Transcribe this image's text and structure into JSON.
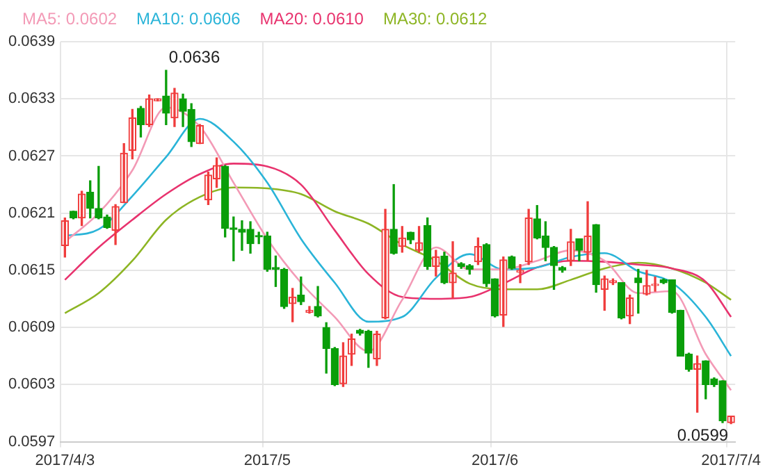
{
  "chart_data": {
    "type": "candlestick",
    "categories": [
      "2017/4/3",
      null,
      null,
      null,
      null,
      null,
      null,
      null,
      null,
      null,
      null,
      null,
      null,
      null,
      null,
      null,
      null,
      null,
      null,
      null,
      null,
      null,
      null,
      null,
      "2017/5",
      null,
      null,
      null,
      null,
      null,
      null,
      null,
      null,
      null,
      null,
      null,
      null,
      null,
      null,
      null,
      null,
      null,
      null,
      null,
      null,
      null,
      null,
      null,
      null,
      null,
      null,
      "2017/6",
      null,
      null,
      null,
      null,
      null,
      null,
      null,
      null,
      null,
      null,
      null,
      null,
      null,
      null,
      null,
      null,
      null,
      null,
      null,
      null,
      null,
      null,
      null,
      null,
      null,
      null,
      null,
      "2017/7/4"
    ],
    "ohlc": [
      [
        0.06176,
        0.06205,
        0.06164,
        0.06202
      ],
      [
        0.06212,
        0.06212,
        0.06204,
        0.06205
      ],
      [
        0.06205,
        0.06233,
        0.06197,
        0.0623
      ],
      [
        0.06232,
        0.06244,
        0.06205,
        0.06215
      ],
      [
        0.06215,
        0.06259,
        0.06204,
        0.06205
      ],
      [
        0.06206,
        0.06208,
        0.06194,
        0.06195
      ],
      [
        0.06192,
        0.06219,
        0.06177,
        0.06217
      ],
      [
        0.06221,
        0.06283,
        0.06221,
        0.06273
      ],
      [
        0.06276,
        0.06319,
        0.06267,
        0.0631
      ],
      [
        0.0632,
        0.06322,
        0.0629,
        0.06303
      ],
      [
        0.06303,
        0.06334,
        0.06301,
        0.0633
      ],
      [
        0.06328,
        0.0633,
        0.06328,
        0.0633
      ],
      [
        0.06333,
        0.0636,
        0.06303,
        0.06315
      ],
      [
        0.0631,
        0.06341,
        0.06301,
        0.06336
      ],
      [
        0.0633,
        0.06335,
        0.06301,
        0.06317
      ],
      [
        0.06319,
        0.06325,
        0.0628,
        0.06285
      ],
      [
        0.06283,
        0.06303,
        0.06283,
        0.06302
      ],
      [
        0.06224,
        0.06253,
        0.06219,
        0.0625
      ],
      [
        0.06246,
        0.06268,
        0.06237,
        0.0626
      ],
      [
        0.06259,
        0.0626,
        0.06185,
        0.06194
      ],
      [
        0.06194,
        0.06206,
        0.0616,
        0.06193
      ],
      [
        0.06193,
        0.06202,
        0.06171,
        0.0619
      ],
      [
        0.06193,
        0.06201,
        0.06168,
        0.06178
      ],
      [
        0.06186,
        0.0619,
        0.06178,
        0.06185
      ],
      [
        0.06186,
        0.0619,
        0.06149,
        0.06151
      ],
      [
        0.06153,
        0.06165,
        0.06133,
        0.06151
      ],
      [
        0.06151,
        0.06152,
        0.0611,
        0.06112
      ],
      [
        0.06115,
        0.06131,
        0.06096,
        0.06122
      ],
      [
        0.06124,
        0.06143,
        0.06114,
        0.06117
      ],
      [
        0.06106,
        0.06112,
        0.06105,
        0.06108
      ],
      [
        0.06112,
        0.06133,
        0.06101,
        0.06102
      ],
      [
        0.0609,
        0.06095,
        0.06042,
        0.06068
      ],
      [
        0.06068,
        0.06069,
        0.06029,
        0.0603
      ],
      [
        0.06031,
        0.06074,
        0.06028,
        0.0606
      ],
      [
        0.06062,
        0.06083,
        0.0605,
        0.06078
      ],
      [
        0.06087,
        0.06088,
        0.06082,
        0.06084
      ],
      [
        0.06086,
        0.06087,
        0.06048,
        0.06063
      ],
      [
        0.06057,
        0.06086,
        0.0605,
        0.06083
      ],
      [
        0.061,
        0.06214,
        0.06099,
        0.06193
      ],
      [
        0.06193,
        0.0624,
        0.06167,
        0.06168
      ],
      [
        0.06175,
        0.06196,
        0.06169,
        0.06184
      ],
      [
        0.0619,
        0.0619,
        0.06178,
        0.06182
      ],
      [
        0.06171,
        0.06196,
        0.06169,
        0.06179
      ],
      [
        0.06197,
        0.06205,
        0.06151,
        0.06154
      ],
      [
        0.06154,
        0.06171,
        0.06144,
        0.06164
      ],
      [
        0.06165,
        0.06169,
        0.06136,
        0.06137
      ],
      [
        0.06137,
        0.0618,
        0.06121,
        0.06147
      ],
      [
        0.06157,
        0.06158,
        0.06152,
        0.06154
      ],
      [
        0.06155,
        0.06156,
        0.06146,
        0.06151
      ],
      [
        0.06159,
        0.06184,
        0.06156,
        0.06175
      ],
      [
        0.06177,
        0.06178,
        0.06133,
        0.06136
      ],
      [
        0.06141,
        0.06141,
        0.06101,
        0.06102
      ],
      [
        0.06103,
        0.06164,
        0.06091,
        0.06161
      ],
      [
        0.06164,
        0.06165,
        0.06151,
        0.06152
      ],
      [
        0.06148,
        0.06156,
        0.06137,
        0.0615
      ],
      [
        0.06159,
        0.06214,
        0.06156,
        0.06205
      ],
      [
        0.06204,
        0.06218,
        0.06183,
        0.06184
      ],
      [
        0.06186,
        0.06201,
        0.0616,
        0.06174
      ],
      [
        0.06174,
        0.06175,
        0.0613,
        0.06155
      ],
      [
        0.06153,
        0.06154,
        0.06148,
        0.0615
      ],
      [
        0.0616,
        0.06193,
        0.06155,
        0.0618
      ],
      [
        0.06183,
        0.06183,
        0.0616,
        0.06171
      ],
      [
        0.06169,
        0.06222,
        0.0616,
        0.06186
      ],
      [
        0.06198,
        0.06198,
        0.06127,
        0.06135
      ],
      [
        0.0613,
        0.06144,
        0.06108,
        0.06141
      ],
      [
        0.06137,
        0.06141,
        0.06135,
        0.06139
      ],
      [
        0.06137,
        0.06137,
        0.06099,
        0.061
      ],
      [
        0.06102,
        0.06124,
        0.06094,
        0.06121
      ],
      [
        0.06142,
        0.06151,
        0.06105,
        0.06137
      ],
      [
        0.06125,
        0.0615,
        0.06124,
        0.06134
      ],
      [
        0.06134,
        0.06143,
        0.06128,
        0.06135
      ],
      [
        0.0614,
        0.06141,
        0.06136,
        0.06137
      ],
      [
        0.0614,
        0.0614,
        0.06105,
        0.06106
      ],
      [
        0.06108,
        0.06108,
        0.0606,
        0.0606
      ],
      [
        0.06062,
        0.06063,
        0.06044,
        0.06046
      ],
      [
        0.06046,
        0.0606,
        0.06001,
        0.06052
      ],
      [
        0.06055,
        0.06055,
        0.06015,
        0.0603
      ],
      [
        0.06036,
        0.06037,
        0.06028,
        0.0603
      ],
      [
        0.06034,
        0.06034,
        0.0599,
        0.05992
      ],
      [
        0.0599,
        0.05997,
        0.05989,
        0.05997
      ]
    ],
    "colors": [
      "#f03c3c",
      "#0a9e0a",
      "#f03c3c",
      "#0a9e0a",
      "#0a9e0a",
      "#0a9e0a",
      "#f03c3c",
      "#f03c3c",
      "#f03c3c",
      "#0a9e0a",
      "#f03c3c",
      "#f03c3c",
      "#0a9e0a",
      "#f03c3c",
      "#0a9e0a",
      "#0a9e0a",
      "#f03c3c",
      "#f03c3c",
      "#f03c3c",
      "#0a9e0a",
      "#0a9e0a",
      "#0a9e0a",
      "#0a9e0a",
      "#0a9e0a",
      "#0a9e0a",
      "#0a9e0a",
      "#0a9e0a",
      "#f03c3c",
      "#0a9e0a",
      "#f03c3c",
      "#0a9e0a",
      "#0a9e0a",
      "#0a9e0a",
      "#f03c3c",
      "#f03c3c",
      "#0a9e0a",
      "#0a9e0a",
      "#f03c3c",
      "#f03c3c",
      "#0a9e0a",
      "#f03c3c",
      "#0a9e0a",
      "#f03c3c",
      "#0a9e0a",
      "#f03c3c",
      "#0a9e0a",
      "#f03c3c",
      "#0a9e0a",
      "#0a9e0a",
      "#f03c3c",
      "#0a9e0a",
      "#0a9e0a",
      "#f03c3c",
      "#0a9e0a",
      "#f03c3c",
      "#f03c3c",
      "#0a9e0a",
      "#0a9e0a",
      "#0a9e0a",
      "#0a9e0a",
      "#f03c3c",
      "#0a9e0a",
      "#f03c3c",
      "#0a9e0a",
      "#f03c3c",
      "#f03c3c",
      "#0a9e0a",
      "#f03c3c",
      "#0a9e0a",
      "#f03c3c",
      "#f03c3c",
      "#0a9e0a",
      "#0a9e0a",
      "#0a9e0a",
      "#0a9e0a",
      "#f03c3c",
      "#0a9e0a",
      "#0a9e0a",
      "#0a9e0a",
      "#f03c3c"
    ],
    "series": [
      {
        "type": "line",
        "name": "MA5: 0.0602",
        "color": "#f39ab6",
        "values": [
          0.0618,
          null,
          null,
          null,
          0.0621,
          null,
          null,
          null,
          0.06255,
          null,
          null,
          null,
          0.06321,
          null,
          null,
          null,
          0.06301,
          null,
          null,
          null,
          0.06242,
          null,
          null,
          null,
          0.06183,
          null,
          null,
          null,
          0.06137,
          null,
          null,
          null,
          0.06101,
          null,
          null,
          null,
          0.06065,
          null,
          null,
          null,
          0.06119,
          null,
          null,
          null,
          0.06174,
          null,
          null,
          null,
          0.06151,
          null,
          null,
          null,
          0.06151,
          null,
          null,
          null,
          0.0616,
          null,
          null,
          null,
          0.06171,
          null,
          null,
          null,
          0.0616,
          null,
          null,
          null,
          0.06126,
          null,
          null,
          null,
          0.06128,
          null,
          null,
          null,
          0.06062,
          null,
          null,
          0.06024
        ]
      },
      {
        "type": "line",
        "name": "MA10: 0.0606",
        "color": "#2ab4d8",
        "values": [
          0.06186,
          null,
          null,
          null,
          0.06193,
          null,
          null,
          null,
          0.06228,
          null,
          null,
          null,
          0.06269,
          null,
          null,
          null,
          0.06309,
          null,
          null,
          null,
          0.06285,
          null,
          null,
          null,
          0.06242,
          null,
          null,
          null,
          0.06183,
          null,
          null,
          null,
          0.06137,
          null,
          null,
          null,
          0.06096,
          null,
          null,
          null,
          0.06101,
          null,
          null,
          null,
          0.06142,
          null,
          null,
          null,
          0.06167,
          null,
          null,
          null,
          0.06151,
          null,
          null,
          null,
          0.06153,
          null,
          null,
          null,
          0.06164,
          null,
          null,
          null,
          0.06168,
          null,
          null,
          null,
          0.06149,
          null,
          null,
          null,
          0.06137,
          null,
          null,
          null,
          0.06101,
          null,
          null,
          0.0606
        ]
      },
      {
        "type": "line",
        "name": "MA20: 0.0610",
        "color": "#e8336e",
        "values": [
          0.0614,
          null,
          null,
          null,
          0.06174,
          null,
          null,
          null,
          0.06203,
          null,
          null,
          null,
          0.0623,
          null,
          null,
          null,
          0.06251,
          null,
          null,
          null,
          0.06262,
          null,
          null,
          null,
          0.06259,
          null,
          null,
          null,
          0.0624,
          null,
          null,
          null,
          0.06192,
          null,
          null,
          null,
          0.06146,
          null,
          null,
          null,
          0.06122,
          null,
          null,
          null,
          0.0612,
          null,
          null,
          null,
          0.06122,
          null,
          null,
          null,
          0.06136,
          null,
          null,
          null,
          0.06153,
          null,
          null,
          null,
          0.0616,
          null,
          null,
          null,
          0.06159,
          null,
          null,
          null,
          0.06156,
          null,
          null,
          null,
          0.06152,
          null,
          null,
          null,
          0.06138,
          null,
          null,
          0.06101
        ]
      },
      {
        "type": "line",
        "name": "MA30: 0.0612",
        "color": "#8db524",
        "values": [
          0.06105,
          null,
          null,
          null,
          0.06126,
          null,
          null,
          null,
          0.0616,
          null,
          null,
          null,
          0.06203,
          null,
          null,
          null,
          0.06227,
          null,
          null,
          null,
          0.06237,
          null,
          null,
          null,
          0.06236,
          null,
          null,
          null,
          0.0623,
          null,
          null,
          null,
          0.06212,
          null,
          null,
          null,
          0.06199,
          null,
          null,
          null,
          0.06177,
          null,
          null,
          null,
          0.0616,
          null,
          null,
          null,
          0.06136,
          null,
          null,
          null,
          0.0613,
          null,
          null,
          null,
          0.0613,
          null,
          null,
          null,
          0.0614,
          null,
          null,
          null,
          0.06152,
          null,
          null,
          null,
          0.06158,
          null,
          null,
          null,
          0.06152,
          null,
          null,
          null,
          0.06137,
          null,
          null,
          0.06119
        ]
      }
    ],
    "ylim": [
      0.0597,
      0.0639
    ],
    "yticks": [
      0.0597,
      0.0603,
      0.0609,
      0.0615,
      0.0621,
      0.0627,
      0.0633,
      0.0639
    ],
    "grid": true,
    "legend": "top left",
    "annotations": [
      "0.0636",
      "0.0599"
    ]
  }
}
